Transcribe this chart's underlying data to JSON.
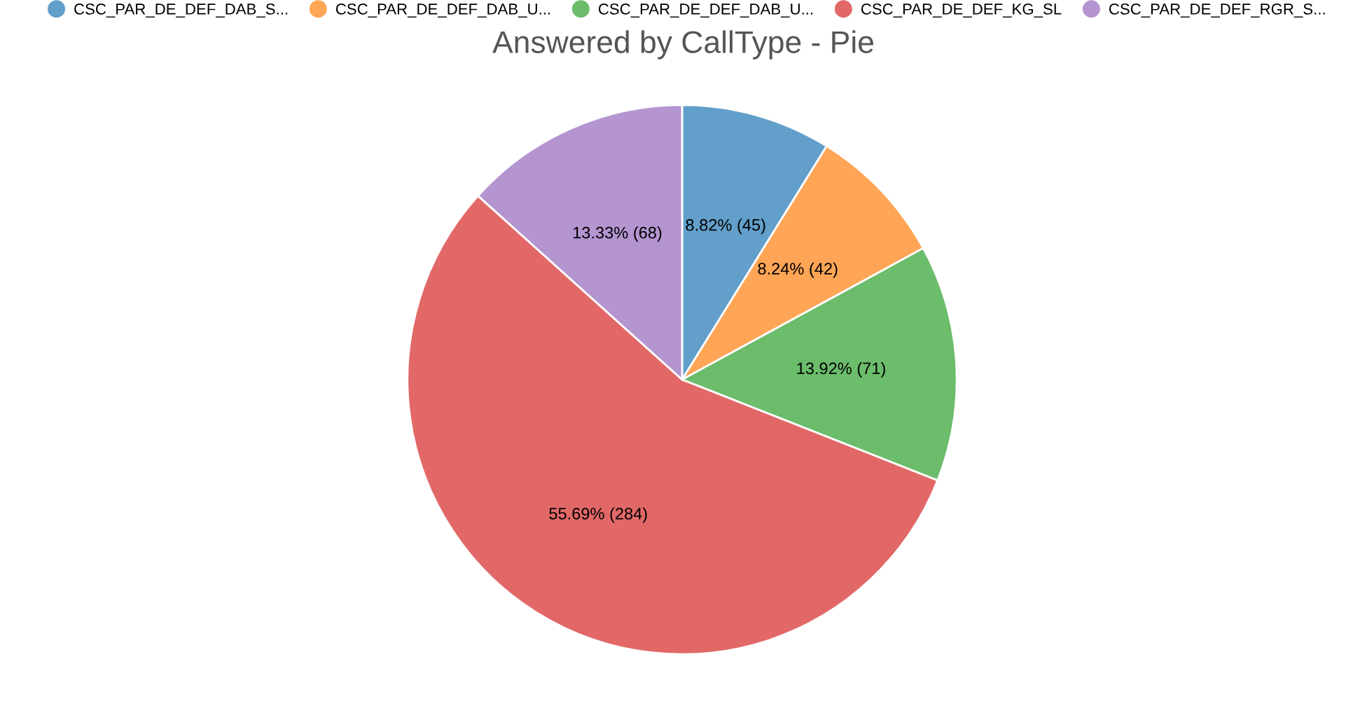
{
  "chart_data": {
    "type": "pie",
    "title": "Answered by CallType - Pie",
    "categories": [
      "CSC_PAR_DE_DEF_DAB_S...",
      "CSC_PAR_DE_DEF_DAB_U...",
      "CSC_PAR_DE_DEF_DAB_U...",
      "CSC_PAR_DE_DEF_KG_SL",
      "CSC_PAR_DE_DEF_RGR_S..."
    ],
    "values": [
      45,
      42,
      71,
      284,
      68
    ],
    "colors": [
      "#629fca",
      "#ffa556",
      "#6bbc6b",
      "#e26868",
      "#b495d0"
    ],
    "value_labels": [
      "8.82% (45)",
      "8.24% (42)",
      "13.92% (71)",
      "55.69% (284)",
      "13.33% (68)"
    ],
    "legend": "top"
  }
}
